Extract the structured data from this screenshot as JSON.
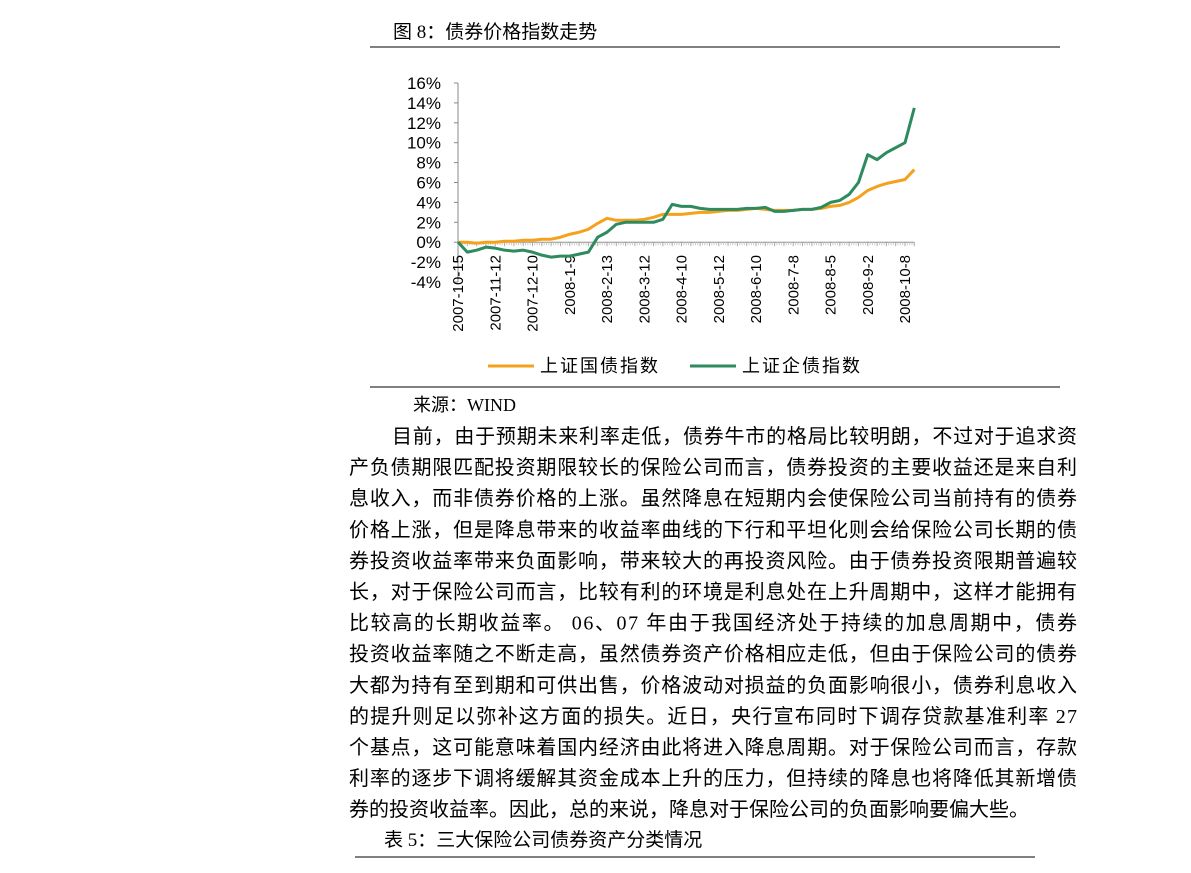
{
  "figure_caption": "图 8：债券价格指数走势",
  "chart_data": {
    "type": "line",
    "categories": [
      "2007-10-15",
      null,
      null,
      null,
      "2007-11-12",
      null,
      null,
      null,
      "2007-12-10",
      null,
      null,
      null,
      "2008-1-9",
      null,
      null,
      null,
      "2008-2-13",
      null,
      null,
      null,
      "2008-3-12",
      null,
      null,
      null,
      "2008-4-10",
      null,
      null,
      null,
      "2008-5-12",
      null,
      null,
      null,
      "2008-6-10",
      null,
      null,
      null,
      "2008-7-8",
      null,
      null,
      null,
      "2008-8-5",
      null,
      null,
      null,
      "2008-9-2",
      null,
      null,
      null,
      "2008-10-8",
      null
    ],
    "series": [
      {
        "name": "上证国债指数",
        "color": "#f5a11c",
        "values": [
          0,
          0,
          -0.1,
          0,
          0,
          0.1,
          0.1,
          0.2,
          0.2,
          0.3,
          0.3,
          0.5,
          0.8,
          1.0,
          1.3,
          1.9,
          2.4,
          2.2,
          2.2,
          2.2,
          2.3,
          2.5,
          2.8,
          2.8,
          2.8,
          2.9,
          3.0,
          3.0,
          3.1,
          3.2,
          3.2,
          3.3,
          3.4,
          3.3,
          3.2,
          3.2,
          3.2,
          3.3,
          3.3,
          3.4,
          3.6,
          3.7,
          4.0,
          4.5,
          5.2,
          5.6,
          5.9,
          6.1,
          6.3,
          7.3
        ]
      },
      {
        "name": "上证企债指数",
        "color": "#2e8b5f",
        "values": [
          0,
          -1.0,
          -0.8,
          -0.5,
          -0.6,
          -0.8,
          -0.9,
          -0.8,
          -1.0,
          -1.3,
          -1.5,
          -1.4,
          -1.4,
          -1.2,
          -1.0,
          0.5,
          1.0,
          1.8,
          2.0,
          2.0,
          2.0,
          2.0,
          2.3,
          3.8,
          3.6,
          3.6,
          3.4,
          3.3,
          3.3,
          3.3,
          3.3,
          3.4,
          3.4,
          3.5,
          3.1,
          3.1,
          3.2,
          3.3,
          3.3,
          3.5,
          4.0,
          4.2,
          4.8,
          6.0,
          8.8,
          8.3,
          9.0,
          9.5,
          10.0,
          13.5
        ]
      }
    ],
    "ylim": [
      -4,
      16
    ],
    "yticks": [
      {
        "value": 16,
        "label": "16%"
      },
      {
        "value": 14,
        "label": "14%"
      },
      {
        "value": 12,
        "label": "12%"
      },
      {
        "value": 10,
        "label": "10%"
      },
      {
        "value": 8,
        "label": "8%"
      },
      {
        "value": 6,
        "label": "6%"
      },
      {
        "value": 4,
        "label": "4%"
      },
      {
        "value": 2,
        "label": "2%"
      },
      {
        "value": 0,
        "label": "0%"
      },
      {
        "value": -2,
        "label": "-2%"
      },
      {
        "value": -4,
        "label": "-4%"
      }
    ],
    "grid": false,
    "legend": "bottom"
  },
  "source": "来源：WIND",
  "paragraph": [
    "目前，由于预期未来利率走低，债券牛市的格局比较明朗，不过对于追求资",
    "产负债期限匹配投资期限较长的保险公司而言，债券投资的主要收益还是来自利",
    "息收入，而非债券价格的上涨。虽然降息在短期内会使保险公司当前持有的债券",
    "价格上涨，但是降息带来的收益率曲线的下行和平坦化则会给保险公司长期的债",
    "券投资收益率带来负面影响，带来较大的再投资风险。由于债券投资限期普遍较",
    "长，对于保险公司而言，比较有利的环境是利息处在上升周期中，这样才能拥有",
    "比较高的长期收益率。 06、07 年由于我国经济处于持续的加息周期中，债券",
    "投资收益率随之不断走高，虽然债券资产价格相应走低，但由于保险公司的债券",
    "大都为持有至到期和可供出售，价格波动对损益的负面影响很小，债券利息收入",
    "的提升则足以弥补这方面的损失。近日，央行宣布同时下调存贷款基准利率 27",
    "个基点，这可能意味着国内经济由此将进入降息周期。对于保险公司而言，存款",
    "利率的逐步下调将缓解其资金成本上升的压力，但持续的降息也将降低其新增债",
    "券的投资收益率。因此，总的来说，降息对于保险公司的负面影响要偏大些。"
  ],
  "table_caption": "表 5：三大保险公司债券资产分类情况"
}
